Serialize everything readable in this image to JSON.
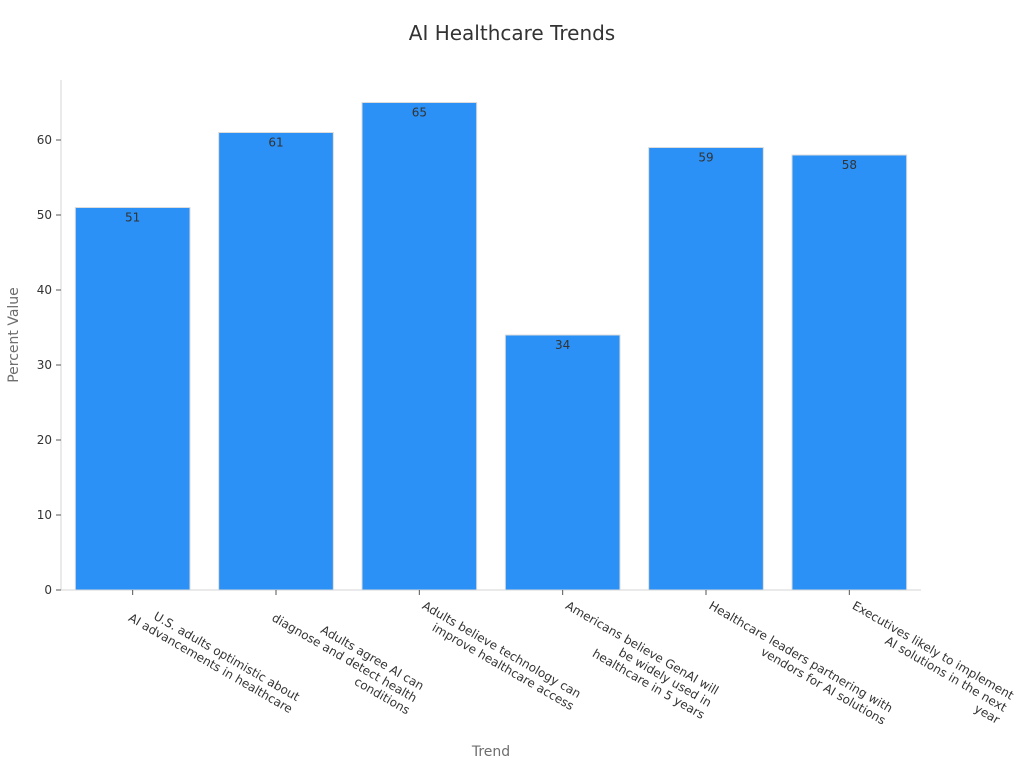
{
  "chart_data": {
    "type": "bar",
    "title": "AI Healthcare Trends",
    "xlabel": "Trend",
    "ylabel": "Percent Value",
    "categories": [
      [
        "U.S. adults optimistic about",
        "AI advancements in healthcare"
      ],
      [
        "Adults agree AI can",
        "diagnose and detect health",
        "conditions"
      ],
      [
        "Adults believe technology can",
        "improve healthcare access"
      ],
      [
        "Americans believe GenAI will",
        "be widely used in",
        "healthcare in 5 years"
      ],
      [
        "Healthcare leaders partnering with",
        "vendors for AI solutions"
      ],
      [
        "Executives likely to implement",
        "AI solutions in the next",
        "year"
      ]
    ],
    "values": [
      51,
      61,
      65,
      34,
      59,
      58
    ],
    "ylim": [
      0,
      68
    ],
    "yticks": [
      0,
      10,
      20,
      30,
      40,
      50,
      60
    ],
    "bar_color": "#2b91f6",
    "grid": false,
    "legend": "none"
  }
}
